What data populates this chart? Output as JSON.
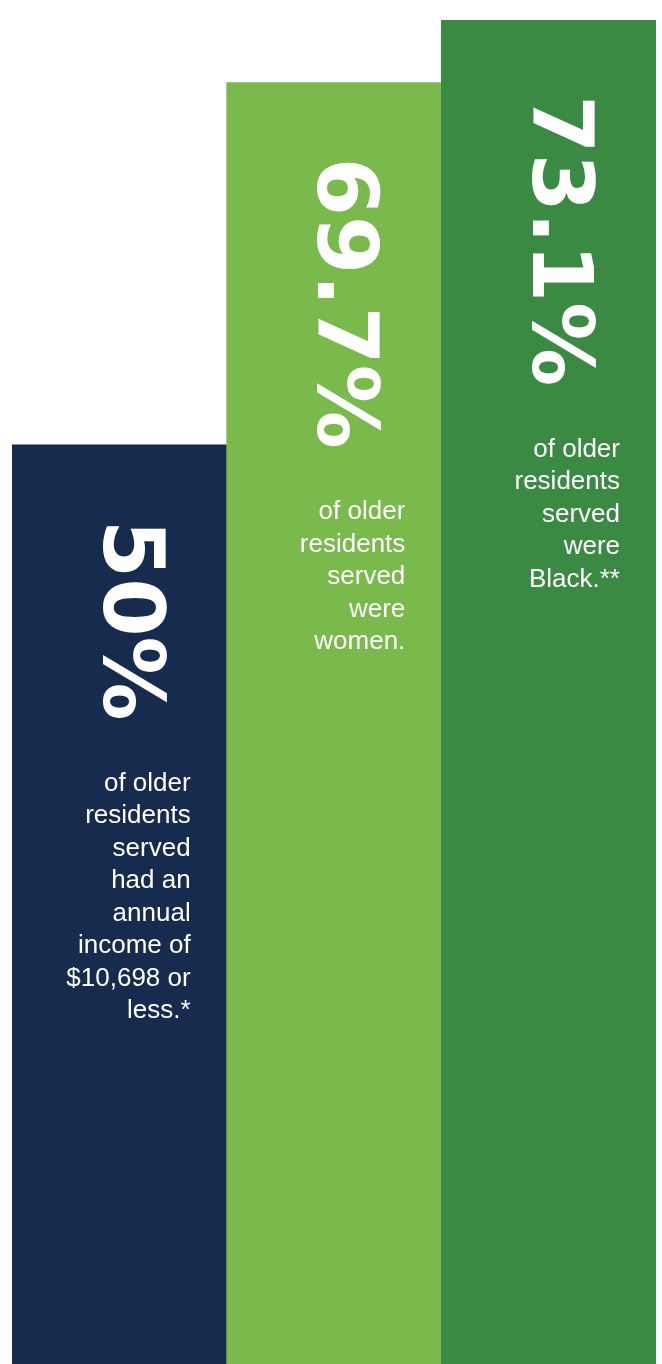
{
  "chart_data": {
    "type": "bar",
    "categories": [
      null,
      null,
      null
    ],
    "values": [
      50,
      69.7,
      73.1
    ],
    "colors": [
      "#162b4e",
      "#7ab94c",
      "#3a8a44"
    ],
    "value_labels": [
      "50%",
      "69.7%",
      "73.1%"
    ],
    "annotations": [
      "of older residents served had an annual income of $10,698 or less.*",
      "of older residents served were women.",
      "of older residents served were Black.**"
    ]
  }
}
